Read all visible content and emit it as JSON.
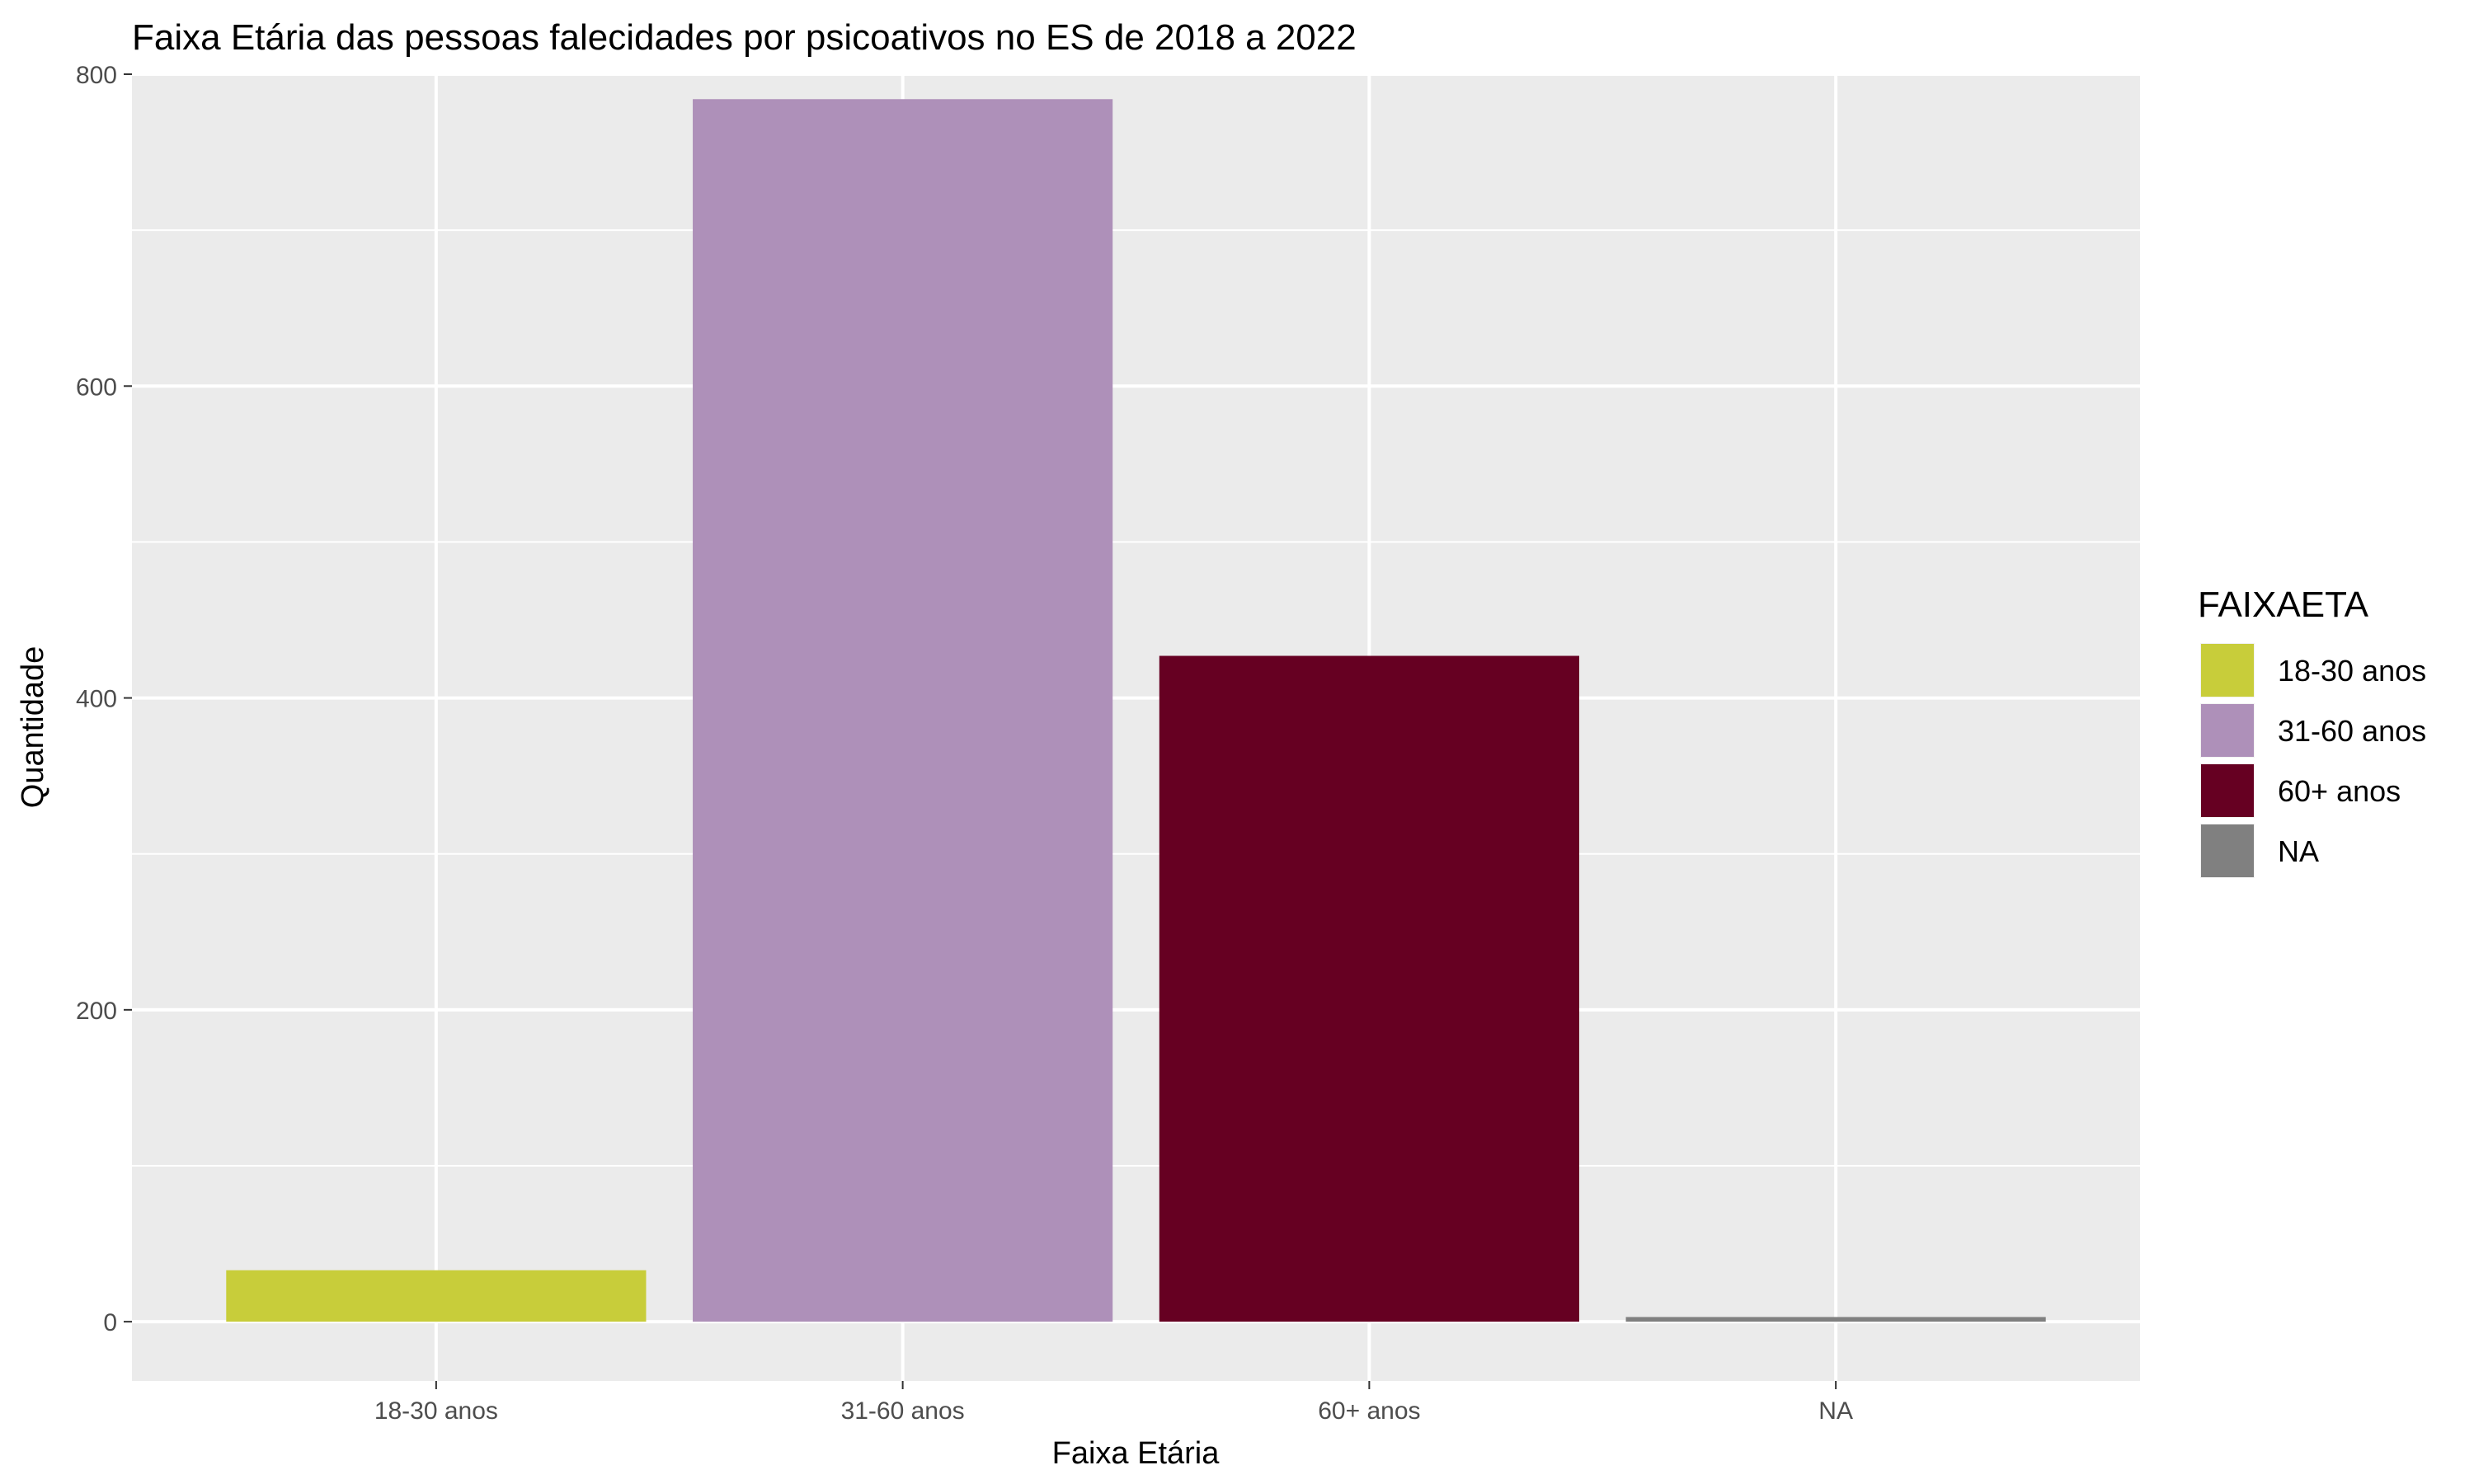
{
  "chart_data": {
    "type": "bar",
    "title": "Faixa Etária das pessoas falecidades por psicoativos no ES de 2018 a 2022",
    "xlabel": "Faixa Etária",
    "ylabel": "Quantidade",
    "categories": [
      "18-30 anos",
      "31-60 anos",
      "60+ anos",
      "NA"
    ],
    "values": [
      33,
      784,
      427,
      3
    ],
    "colors": [
      "#c8cd3a",
      "#ae90b9",
      "#660022",
      "#808080"
    ],
    "ylim": [
      -38,
      800
    ],
    "yticks": [
      0,
      200,
      400,
      600,
      800
    ],
    "grid": true,
    "legend": {
      "title": "FAIXAETA",
      "position": "right",
      "entries": [
        "18-30 anos",
        "31-60 anos",
        "60+ anos",
        "NA"
      ]
    }
  }
}
